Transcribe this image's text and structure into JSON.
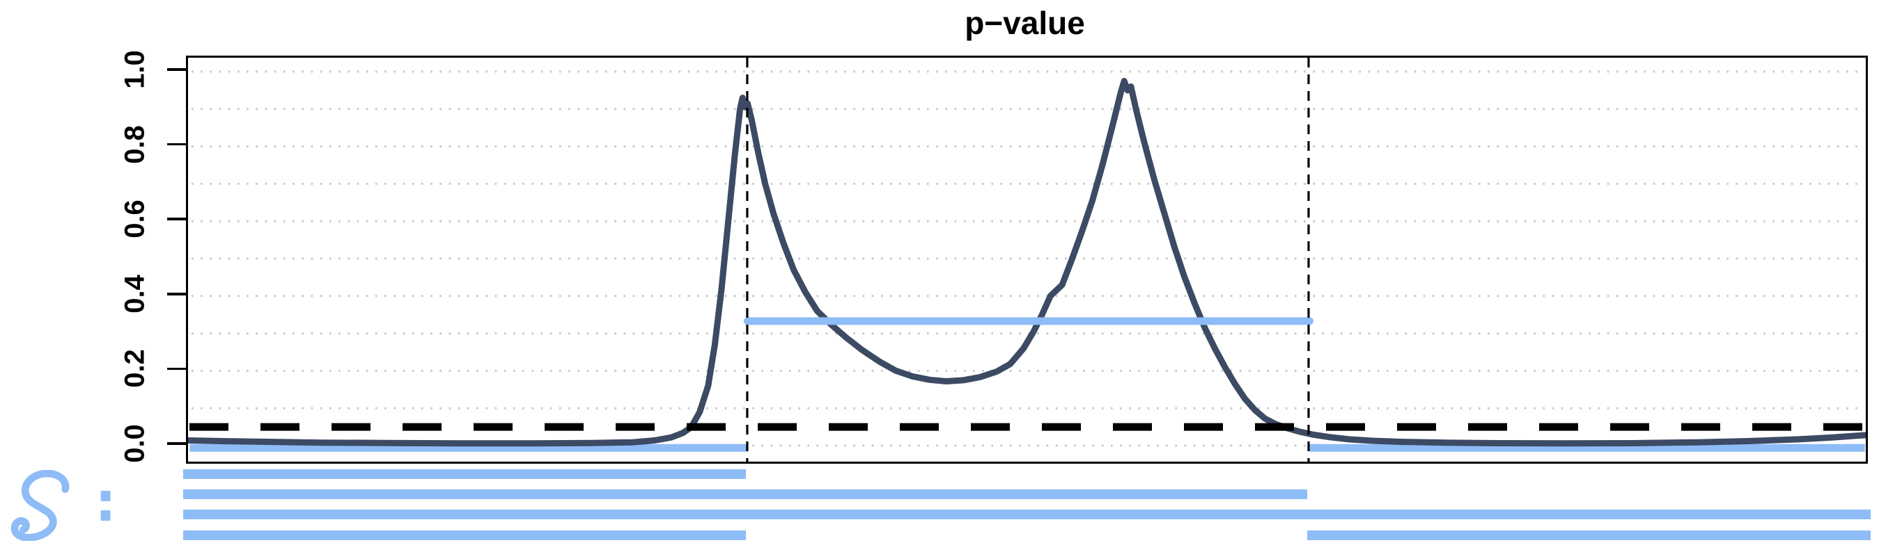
{
  "figure": {
    "set_label_symbol": "S",
    "set_label_colon": ":"
  },
  "colors": {
    "curve": "#3C4A63",
    "band_blue": "#8EBCF6",
    "grid_dots": "#C6C6C6",
    "threshold_line": "#000000",
    "guide_line": "#000000",
    "background": "#FFFFFF"
  },
  "chart_data": {
    "type": "line",
    "title": "p−value",
    "xlabel": "",
    "ylabel": "",
    "ylim": [
      0,
      1
    ],
    "yticks": [
      0.0,
      0.2,
      0.4,
      0.6,
      0.8,
      1.0
    ],
    "ytick_labels": [
      "0.0",
      "0.2",
      "0.4",
      "0.6",
      "0.8",
      "1.0"
    ],
    "grid": "dotted horizontal gridlines every 0.1, no vertical grid",
    "grid_y": [
      0,
      0.1,
      0.2,
      0.3,
      0.4,
      0.5,
      0.6,
      0.7,
      0.8,
      0.9,
      1.0
    ],
    "significance_threshold": 0.05,
    "vertical_guides_x": [
      0.3333,
      0.6679
    ],
    "peaks": [
      {
        "x_frac": 0.3305,
        "p_value": 0.93
      },
      {
        "x_frac": 0.558,
        "p_value": 0.98
      }
    ],
    "valley": {
      "x_frac": 0.435,
      "p_value": 0.17
    },
    "series": [
      {
        "name": "p-value curve",
        "color": "#3C4A63",
        "points": [
          [
            0.0,
            0.014
          ],
          [
            0.02,
            0.012
          ],
          [
            0.05,
            0.01
          ],
          [
            0.08,
            0.008
          ],
          [
            0.12,
            0.007
          ],
          [
            0.16,
            0.006
          ],
          [
            0.2,
            0.006
          ],
          [
            0.24,
            0.007
          ],
          [
            0.265,
            0.009
          ],
          [
            0.278,
            0.014
          ],
          [
            0.288,
            0.022
          ],
          [
            0.295,
            0.034
          ],
          [
            0.3,
            0.05
          ],
          [
            0.305,
            0.09
          ],
          [
            0.31,
            0.16
          ],
          [
            0.314,
            0.27
          ],
          [
            0.318,
            0.42
          ],
          [
            0.322,
            0.6
          ],
          [
            0.326,
            0.78
          ],
          [
            0.329,
            0.9
          ],
          [
            0.3305,
            0.93
          ],
          [
            0.332,
            0.905
          ],
          [
            0.3335,
            0.915
          ],
          [
            0.336,
            0.87
          ],
          [
            0.34,
            0.78
          ],
          [
            0.344,
            0.7
          ],
          [
            0.349,
            0.62
          ],
          [
            0.355,
            0.54
          ],
          [
            0.361,
            0.47
          ],
          [
            0.368,
            0.41
          ],
          [
            0.375,
            0.36
          ],
          [
            0.383,
            0.325
          ],
          [
            0.392,
            0.29
          ],
          [
            0.402,
            0.255
          ],
          [
            0.412,
            0.225
          ],
          [
            0.422,
            0.2
          ],
          [
            0.432,
            0.185
          ],
          [
            0.442,
            0.176
          ],
          [
            0.452,
            0.172
          ],
          [
            0.462,
            0.175
          ],
          [
            0.472,
            0.183
          ],
          [
            0.482,
            0.198
          ],
          [
            0.49,
            0.218
          ],
          [
            0.498,
            0.26
          ],
          [
            0.504,
            0.305
          ],
          [
            0.509,
            0.35
          ],
          [
            0.514,
            0.4
          ],
          [
            0.521,
            0.43
          ],
          [
            0.527,
            0.5
          ],
          [
            0.533,
            0.575
          ],
          [
            0.539,
            0.655
          ],
          [
            0.545,
            0.75
          ],
          [
            0.551,
            0.855
          ],
          [
            0.556,
            0.945
          ],
          [
            0.558,
            0.975
          ],
          [
            0.56,
            0.95
          ],
          [
            0.562,
            0.96
          ],
          [
            0.565,
            0.9
          ],
          [
            0.57,
            0.81
          ],
          [
            0.576,
            0.71
          ],
          [
            0.582,
            0.62
          ],
          [
            0.588,
            0.53
          ],
          [
            0.594,
            0.45
          ],
          [
            0.6,
            0.38
          ],
          [
            0.606,
            0.315
          ],
          [
            0.612,
            0.26
          ],
          [
            0.618,
            0.21
          ],
          [
            0.624,
            0.165
          ],
          [
            0.63,
            0.125
          ],
          [
            0.636,
            0.095
          ],
          [
            0.642,
            0.072
          ],
          [
            0.648,
            0.058
          ],
          [
            0.655,
            0.047
          ],
          [
            0.662,
            0.038
          ],
          [
            0.67,
            0.03
          ],
          [
            0.68,
            0.023
          ],
          [
            0.692,
            0.017
          ],
          [
            0.706,
            0.013
          ],
          [
            0.724,
            0.01
          ],
          [
            0.75,
            0.008
          ],
          [
            0.78,
            0.0065
          ],
          [
            0.82,
            0.006
          ],
          [
            0.86,
            0.0065
          ],
          [
            0.9,
            0.009
          ],
          [
            0.93,
            0.012
          ],
          [
            0.96,
            0.017
          ],
          [
            0.98,
            0.022
          ],
          [
            1.0,
            0.028
          ]
        ]
      }
    ],
    "blue_segments": [
      {
        "y": 0.333,
        "x1": 0.3335,
        "x2": 0.6685,
        "note": "horizontal level line between vertical guides"
      },
      {
        "y": -0.006,
        "x1": 0.001,
        "x2": 0.3335,
        "note": "near-zero band left of first guide"
      },
      {
        "y": -0.006,
        "x1": 0.6685,
        "x2": 0.9995,
        "note": "near-zero band right of second guide"
      }
    ],
    "candidate_sets": {
      "label": "S :",
      "rows": [
        [
          [
            0.0,
            0.3335
          ]
        ],
        [
          [
            0.0,
            0.6661
          ]
        ],
        [
          [
            0.0,
            1.0
          ]
        ],
        [
          [
            0.0,
            0.3335
          ],
          [
            0.6661,
            1.0
          ]
        ]
      ]
    }
  }
}
